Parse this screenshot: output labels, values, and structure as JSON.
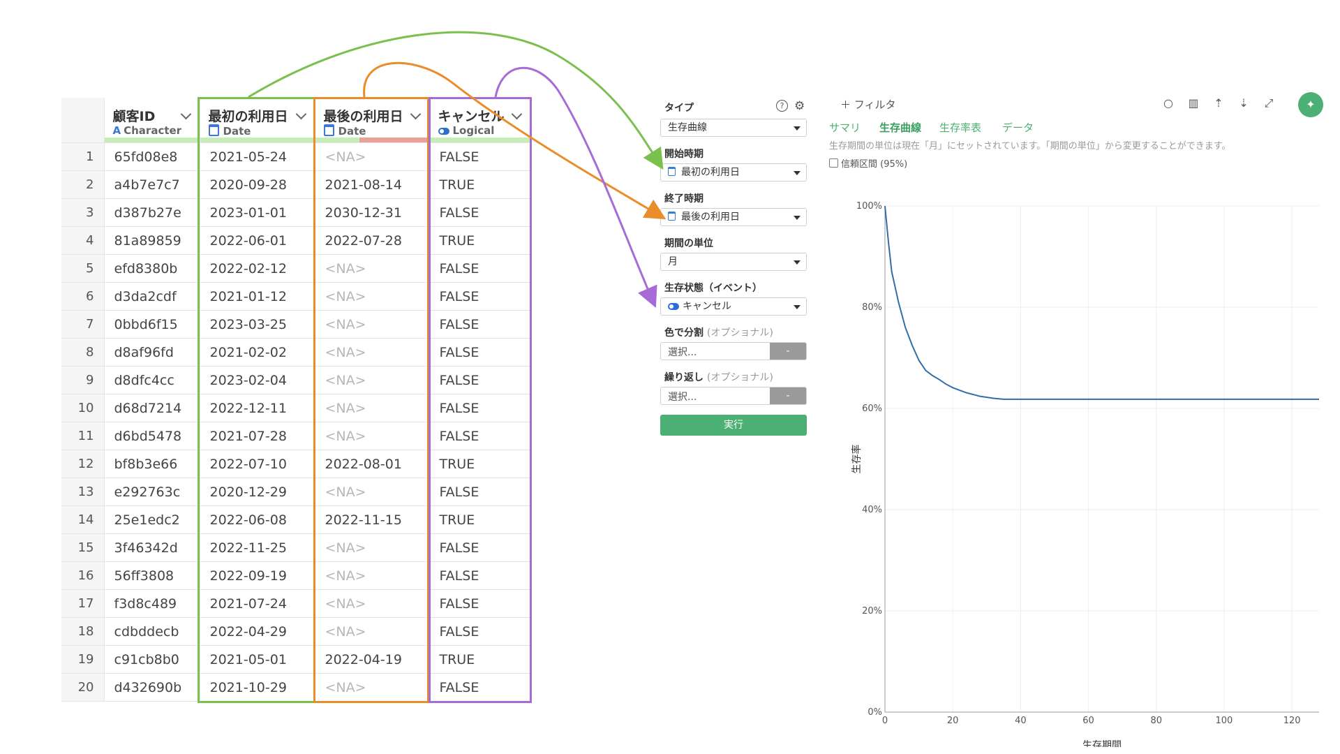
{
  "table": {
    "columns": [
      {
        "name": "顧客ID",
        "type": "Character",
        "type_icon": "character-icon"
      },
      {
        "name": "最初の利用日",
        "type": "Date",
        "type_icon": "calendar-icon"
      },
      {
        "name": "最後の利用日",
        "type": "Date",
        "type_icon": "calendar-icon"
      },
      {
        "name": "キャンセル",
        "type": "Logical",
        "type_icon": "toggle-icon"
      }
    ],
    "rows": [
      [
        "1",
        "65fd08e8",
        "2021-05-24",
        "<NA>",
        "FALSE"
      ],
      [
        "2",
        "a4b7e7c7",
        "2020-09-28",
        "2021-08-14",
        "TRUE"
      ],
      [
        "3",
        "d387b27e",
        "2023-01-01",
        "2030-12-31",
        "FALSE"
      ],
      [
        "4",
        "81a89859",
        "2022-06-01",
        "2022-07-28",
        "TRUE"
      ],
      [
        "5",
        "efd8380b",
        "2022-02-12",
        "<NA>",
        "FALSE"
      ],
      [
        "6",
        "d3da2cdf",
        "2021-01-12",
        "<NA>",
        "FALSE"
      ],
      [
        "7",
        "0bbd6f15",
        "2023-03-25",
        "<NA>",
        "FALSE"
      ],
      [
        "8",
        "d8af96fd",
        "2021-02-02",
        "<NA>",
        "FALSE"
      ],
      [
        "9",
        "d8dfc4cc",
        "2023-02-04",
        "<NA>",
        "FALSE"
      ],
      [
        "10",
        "d68d7214",
        "2022-12-11",
        "<NA>",
        "FALSE"
      ],
      [
        "11",
        "d6bd5478",
        "2021-07-28",
        "<NA>",
        "FALSE"
      ],
      [
        "12",
        "bf8b3e66",
        "2022-07-10",
        "2022-08-01",
        "TRUE"
      ],
      [
        "13",
        "e292763c",
        "2020-12-29",
        "<NA>",
        "FALSE"
      ],
      [
        "14",
        "25e1edc2",
        "2022-06-08",
        "2022-11-15",
        "TRUE"
      ],
      [
        "15",
        "3f46342d",
        "2022-11-25",
        "<NA>",
        "FALSE"
      ],
      [
        "16",
        "56ff3808",
        "2022-09-19",
        "<NA>",
        "FALSE"
      ],
      [
        "17",
        "f3d8c489",
        "2021-07-24",
        "<NA>",
        "FALSE"
      ],
      [
        "18",
        "cdbddecb",
        "2022-04-29",
        "<NA>",
        "FALSE"
      ],
      [
        "19",
        "c91cb8b0",
        "2021-05-01",
        "2022-04-19",
        "TRUE"
      ],
      [
        "20",
        "d432690b",
        "2021-10-29",
        "<NA>",
        "FALSE"
      ]
    ]
  },
  "highlight_colors": {
    "green": "#7bbf4e",
    "orange": "#e98d2b",
    "purple": "#a86ad6"
  },
  "settings": {
    "type_label": "タイプ",
    "type_value": "生存曲線",
    "start_label": "開始時期",
    "start_value": "最初の利用日",
    "end_label": "終了時期",
    "end_value": "最後の利用日",
    "unit_label": "期間の単位",
    "unit_value": "月",
    "status_label": "生存状態（イベント）",
    "status_value": "キャンセル",
    "color_label": "色で分割",
    "color_optional": "(オプショナル)",
    "color_placeholder": "選択...",
    "repeat_label": "繰り返し",
    "repeat_optional": "(オプショナル)",
    "repeat_placeholder": "選択...",
    "clear_button": "-",
    "run_button": "実行",
    "help_icon": "help-icon",
    "gear_icon": "gear-icon"
  },
  "chart_panel": {
    "filter_label": "フィルタ",
    "tabs": [
      "サマリ",
      "生存曲線",
      "生存率表",
      "データ"
    ],
    "active_tab": "生存曲線",
    "note": "生存期間の単位は現在「月」にセットされています。「期間の単位」から変更することができます。",
    "ci_label": "信頼区間 (95%)",
    "accent_color": "#4caf74",
    "toolbar_icons": [
      "comment-icon",
      "bar-chart-icon",
      "upload-icon",
      "download-icon",
      "expand-icon",
      "pin-icon"
    ]
  },
  "chart_data": {
    "type": "line",
    "xlabel": "生存期間",
    "ylabel": "生存率",
    "xlim": [
      0,
      128
    ],
    "ylim": [
      0,
      1
    ],
    "x_ticks": [
      0,
      20,
      40,
      60,
      80,
      100,
      120
    ],
    "y_ticks": [
      "0%",
      "20%",
      "40%",
      "60%",
      "80%",
      "100%"
    ],
    "grid": true,
    "line_color": "#2f6ea8",
    "series": [
      {
        "x": [
          0,
          1,
          2,
          4,
          6,
          8,
          10,
          12,
          14,
          16,
          18,
          20,
          24,
          28,
          32,
          35,
          40,
          60,
          80,
          100,
          120,
          128
        ],
        "y": [
          1.0,
          0.93,
          0.87,
          0.81,
          0.76,
          0.725,
          0.695,
          0.675,
          0.665,
          0.657,
          0.648,
          0.641,
          0.631,
          0.624,
          0.62,
          0.618,
          0.618,
          0.618,
          0.618,
          0.618,
          0.618,
          0.618
        ]
      }
    ]
  }
}
